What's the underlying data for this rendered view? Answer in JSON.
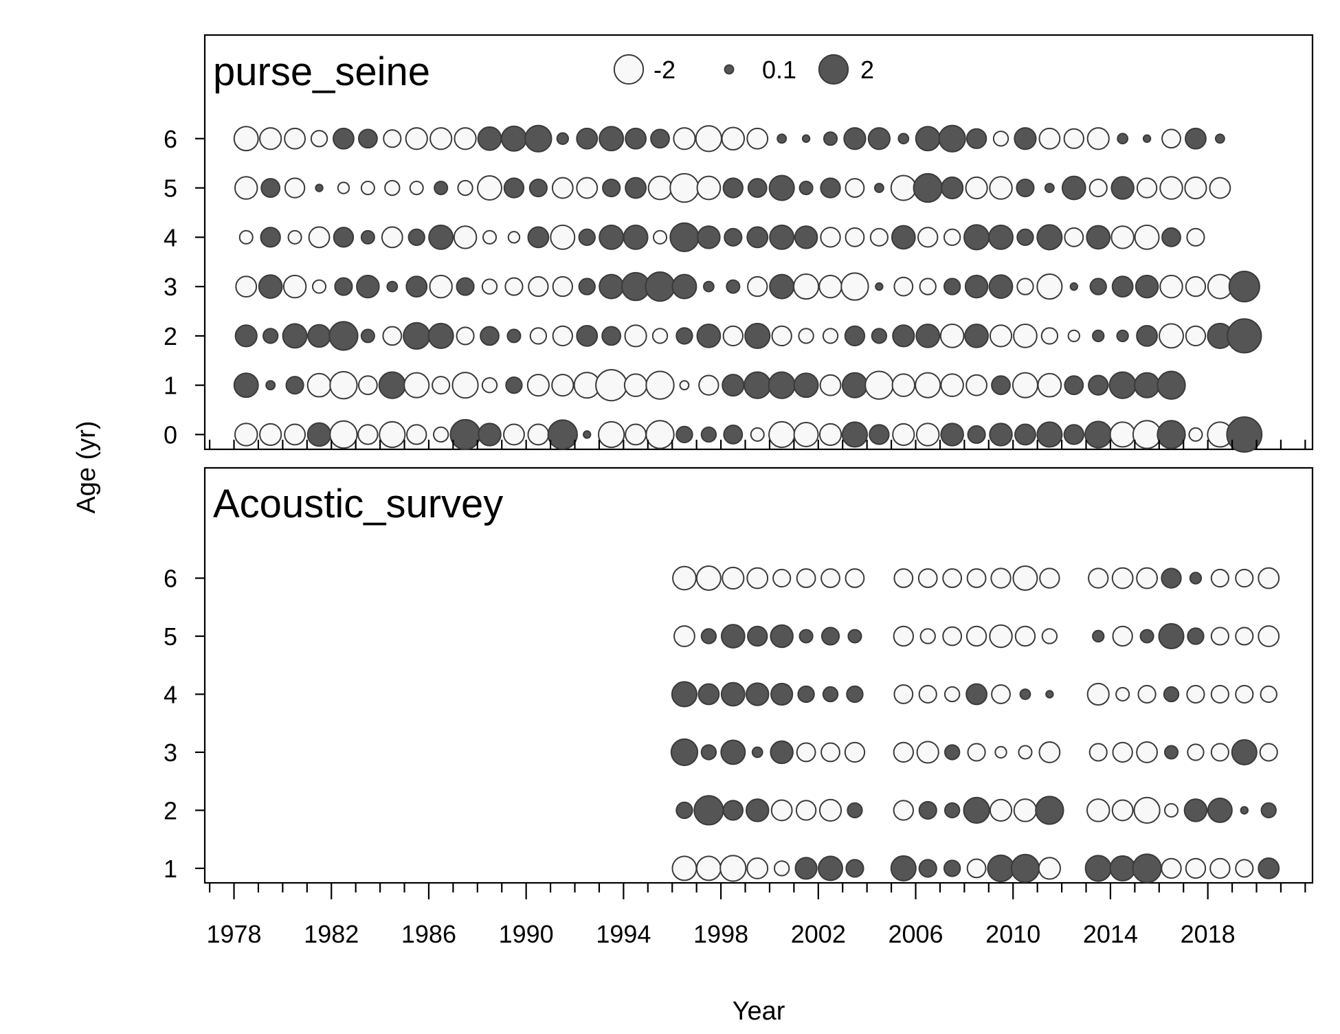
{
  "chart_data": {
    "type": "bubble",
    "xlabel": "Year",
    "ylabel": "Age (yr)",
    "x_tick_labels": [
      "1978",
      "1982",
      "1986",
      "1990",
      "1994",
      "1998",
      "2002",
      "2006",
      "2010",
      "2014",
      "2018"
    ],
    "x_tick_values": [
      1978,
      1982,
      1986,
      1990,
      1994,
      1998,
      2002,
      2006,
      2010,
      2014,
      2018
    ],
    "xlim": [
      1976.8,
      2022.3
    ],
    "minor_ticks_every": 1,
    "legend": {
      "placement": "top-center",
      "entries": [
        {
          "label": "-2",
          "value": -2
        },
        {
          "label": "0.1",
          "value": 0.1
        },
        {
          "label": "2",
          "value": 2
        }
      ]
    },
    "colors": {
      "positive": "#555555",
      "negative": "#f8f8f8",
      "stroke": "#3a3a3a"
    },
    "panels": [
      {
        "title": "purse_seine",
        "ages": [
          0,
          1,
          2,
          3,
          4,
          5,
          6
        ],
        "ylim": [
          -0.3,
          8.1
        ],
        "start_year": 1978.5,
        "values": {
          "6": [
            -1.3,
            -1.0,
            -0.9,
            -0.5,
            0.9,
            0.7,
            -0.6,
            -1.0,
            -1.0,
            -1.0,
            1.2,
            1.4,
            1.6,
            0.2,
            0.9,
            1.3,
            0.9,
            0.7,
            -1.0,
            -1.5,
            -1.1,
            -0.9,
            0.1,
            0.05,
            0.3,
            1.0,
            1.0,
            0.15,
            1.3,
            1.6,
            0.8,
            -0.4,
            1.0,
            -0.9,
            -0.8,
            -1.0,
            0.15,
            0.05,
            -0.7,
            0.9,
            0.1
          ],
          "5": [
            -1.1,
            0.7,
            -0.8,
            0.05,
            -0.2,
            -0.3,
            -0.4,
            -0.3,
            0.3,
            -0.4,
            -1.3,
            0.8,
            0.6,
            -0.9,
            -0.9,
            0.6,
            0.9,
            -1.2,
            -1.9,
            -1.2,
            0.8,
            0.7,
            1.4,
            0.3,
            0.8,
            -0.7,
            0.1,
            -1.4,
            1.9,
            1.0,
            -1.0,
            -1.1,
            0.6,
            0.1,
            1.2,
            -0.6,
            1.1,
            -0.8,
            -1.1,
            -1.0,
            -0.9
          ],
          "4": [
            -0.3,
            0.8,
            -0.3,
            -0.9,
            0.8,
            0.3,
            -0.9,
            0.5,
            1.3,
            -1.1,
            -0.3,
            -0.2,
            0.9,
            -1.3,
            0.5,
            1.3,
            1.3,
            -0.3,
            1.9,
            1.1,
            0.6,
            0.9,
            1.3,
            1.1,
            -0.8,
            -0.7,
            -0.6,
            1.2,
            -0.8,
            -0.5,
            1.4,
            1.3,
            0.5,
            1.4,
            -0.7,
            1.2,
            -1.1,
            -1.3,
            0.7,
            -0.6
          ],
          "3": [
            -0.9,
            1.2,
            -1.1,
            -0.3,
            0.6,
            1.1,
            0.15,
            0.9,
            -1.1,
            0.6,
            -0.4,
            -0.6,
            -0.8,
            -0.8,
            0.5,
            1.3,
            1.8,
            2.0,
            1.3,
            0.15,
            0.3,
            -0.8,
            1.3,
            -1.4,
            -1.1,
            -1.7,
            0.05,
            -0.7,
            -0.5,
            0.5,
            1.1,
            1.2,
            -0.5,
            -1.4,
            0.05,
            0.5,
            0.9,
            1.1,
            -1.1,
            -0.8,
            -1.3,
            2.2
          ],
          "2": [
            1.0,
            0.4,
            1.3,
            1.1,
            1.9,
            0.3,
            -0.7,
            1.6,
            1.4,
            -0.6,
            0.7,
            0.3,
            -0.5,
            -0.8,
            0.9,
            0.7,
            -1.0,
            -0.4,
            0.5,
            1.2,
            -0.8,
            1.4,
            -0.8,
            -0.4,
            -0.4,
            0.8,
            0.4,
            1.0,
            1.2,
            -1.2,
            1.2,
            -1.0,
            -1.2,
            -0.5,
            -0.2,
            0.2,
            0.2,
            0.9,
            -1.3,
            -0.8,
            1.4,
            2.8
          ],
          "1": [
            1.3,
            0.1,
            0.6,
            -1.2,
            -1.7,
            -0.7,
            1.6,
            -1.4,
            -0.6,
            -1.5,
            -0.4,
            0.5,
            -1.0,
            -1.0,
            -1.5,
            -2.3,
            -1.1,
            -1.8,
            -0.1,
            -0.8,
            1.0,
            1.6,
            1.6,
            1.3,
            -0.9,
            1.4,
            -1.8,
            -1.1,
            -1.4,
            -1.1,
            -0.9,
            0.7,
            -1.4,
            -1.2,
            0.7,
            0.8,
            1.6,
            1.4,
            1.8
          ],
          "0": [
            -1.1,
            -1.0,
            -0.9,
            1.2,
            -1.7,
            -0.8,
            -1.5,
            -0.8,
            -0.4,
            2.1,
            1.1,
            -0.9,
            -0.9,
            2.0,
            0.05,
            -1.5,
            -0.9,
            -1.8,
            0.5,
            0.4,
            0.7,
            -0.3,
            -1.5,
            -1.3,
            -1.0,
            1.4,
            0.8,
            -1.0,
            -1.1,
            1.1,
            0.6,
            1.1,
            0.9,
            1.4,
            0.8,
            1.6,
            -1.4,
            -1.8,
            1.8,
            -0.3,
            -1.4,
            3.0
          ]
        }
      },
      {
        "title": "Acoustic_survey",
        "ages": [
          1,
          2,
          3,
          4,
          5,
          6
        ],
        "ylim": [
          0.75,
          7.9
        ],
        "start_year": 1996.5,
        "values": {
          "6": [
            -1.2,
            -1.3,
            -1.0,
            -0.9,
            -0.6,
            -0.7,
            -0.7,
            -0.7,
            null,
            -0.7,
            -0.7,
            -0.7,
            -0.7,
            -0.8,
            -1.3,
            -0.8,
            null,
            -0.8,
            -0.9,
            -0.9,
            0.8,
            0.2,
            -0.6,
            -0.6,
            -0.9
          ],
          "5": [
            -0.9,
            0.4,
            1.2,
            0.8,
            1.1,
            0.3,
            0.6,
            0.3,
            null,
            -0.8,
            -0.4,
            -0.7,
            -0.8,
            -1.1,
            -0.8,
            -0.4,
            null,
            0.2,
            -0.8,
            0.3,
            1.4,
            0.5,
            -0.6,
            -0.6,
            -0.9
          ],
          "4": [
            1.4,
            0.9,
            1.2,
            1.1,
            1.0,
            0.5,
            0.4,
            0.5,
            null,
            -0.7,
            -0.6,
            -0.4,
            0.9,
            -0.7,
            0.15,
            0.05,
            null,
            -1.0,
            -0.3,
            -0.6,
            0.4,
            -0.6,
            -0.6,
            -0.6,
            -0.5
          ],
          "3": [
            1.6,
            0.4,
            1.3,
            0.15,
            1.1,
            -0.7,
            -0.7,
            -0.8,
            null,
            -0.8,
            -1.0,
            0.4,
            -0.6,
            -0.2,
            -0.3,
            -0.9,
            null,
            -0.6,
            -0.8,
            -0.9,
            0.3,
            -0.5,
            -0.6,
            1.4,
            -0.6
          ],
          "2": [
            0.5,
            2.0,
            0.8,
            1.1,
            -0.9,
            -0.8,
            -1.0,
            0.4,
            null,
            -0.8,
            0.6,
            0.4,
            1.5,
            -1.0,
            -1.1,
            1.8,
            null,
            -1.1,
            -0.9,
            -1.5,
            -0.3,
            1.1,
            1.3,
            0.05,
            0.4
          ],
          "1": [
            -1.3,
            -1.3,
            -1.5,
            -0.9,
            -0.4,
            1.0,
            1.3,
            0.6,
            null,
            1.4,
            0.6,
            0.5,
            -0.7,
            1.6,
            1.8,
            -1.0,
            null,
            1.5,
            1.4,
            1.9,
            -0.8,
            -0.8,
            -0.8,
            -0.6,
            0.9
          ]
        }
      }
    ]
  }
}
